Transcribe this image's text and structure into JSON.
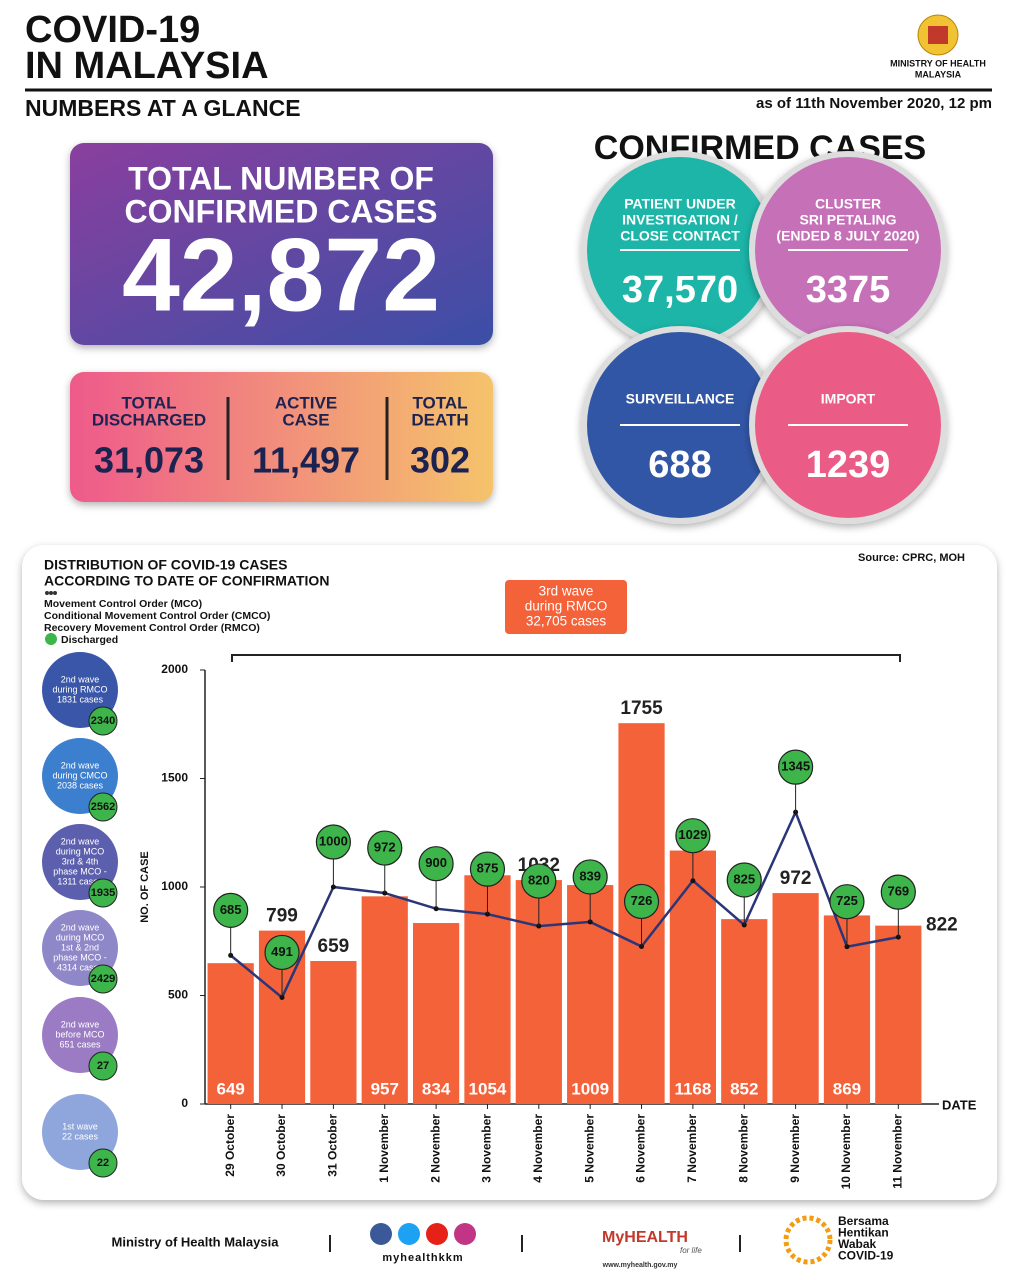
{
  "header": {
    "title_lines": [
      "COVID-19",
      "IN MALAYSIA"
    ],
    "subtitle": "NUMBERS AT A GLANCE",
    "ministry_lines": [
      "MINISTRY OF HEALTH",
      "MALAYSIA"
    ],
    "as_of": "as of 11th November 2020, 12 pm"
  },
  "total": {
    "label_lines": [
      "TOTAL NUMBER OF",
      "CONFIRMED CASES"
    ],
    "value": "42,872"
  },
  "summary": [
    {
      "label_lines": [
        "TOTAL",
        "DISCHARGED"
      ],
      "value": "31,073"
    },
    {
      "label_lines": [
        "ACTIVE",
        "CASE"
      ],
      "value": "11,497"
    },
    {
      "label_lines": [
        "TOTAL",
        "DEATH"
      ],
      "value": "302"
    }
  ],
  "confirmed": {
    "title": "CONFIRMED CASES",
    "groups": [
      {
        "label_lines": [
          "PATIENT UNDER",
          "INVESTIGATION /",
          "CLOSE CONTACT"
        ],
        "value": "37,570"
      },
      {
        "label_lines": [
          "CLUSTER",
          "SRI PETALING",
          "(ENDED 8 JULY 2020)"
        ],
        "value": "3375"
      },
      {
        "label_lines": [
          "SURVEILLANCE"
        ],
        "value": "688"
      },
      {
        "label_lines": [
          "IMPORT"
        ],
        "value": "1239"
      }
    ]
  },
  "chart_data": {
    "type": "bar",
    "title_lines": [
      "DISTRIBUTION OF COVID-19 CASES",
      "ACCORDING TO DATE OF CONFIRMATION"
    ],
    "source": "Source: CPRC, MOH",
    "legend_lines": [
      "Movement Control Order (MCO)",
      "Conditional Movement Control Order (CMCO)",
      "Recovery Movement Control Order (RMCO)"
    ],
    "annotation_lines": [
      "3rd wave",
      "during RMCO",
      "32,705 cases"
    ],
    "categories": [
      "29 October",
      "30 October",
      "31 October",
      "1 November",
      "2 November",
      "3 November",
      "4 November",
      "5 November",
      "6 November",
      "7 November",
      "8 November",
      "9 November",
      "10 November",
      "11 November"
    ],
    "series": [
      {
        "color": "#f4623a",
        "values": [
          649,
          799,
          659,
          957,
          834,
          1054,
          1032,
          1009,
          1755,
          1168,
          852,
          972,
          869,
          822
        ]
      },
      {
        "name": "Discharged",
        "type": "line",
        "color": "#2b3678",
        "marker_color": "#3db54a",
        "values": [
          685,
          491,
          1000,
          972,
          900,
          875,
          820,
          839,
          726,
          1029,
          825,
          1345,
          725,
          769
        ]
      }
    ],
    "ylim": [
      0,
      2000
    ],
    "yticks": [
      0,
      500,
      1000,
      1500,
      2000
    ],
    "ylabel": "NO. OF CASE",
    "xlabel": "DATE"
  },
  "waves": [
    {
      "label_lines": [
        "2nd wave",
        "during RMCO",
        "1831 cases"
      ],
      "discharged": "2340",
      "color": "#3a56a8"
    },
    {
      "label_lines": [
        "2nd wave",
        "during CMCO",
        "2038 cases"
      ],
      "discharged": "2562",
      "color": "#3d7fcf"
    },
    {
      "label_lines": [
        "2nd wave",
        "during MCO",
        "3rd & 4th",
        "phase MCO -",
        "1311 cases"
      ],
      "discharged": "1935",
      "color": "#5b5fae"
    },
    {
      "label_lines": [
        "2nd wave",
        "during MCO",
        "1st & 2nd",
        "phase MCO -",
        "4314 cases"
      ],
      "discharged": "2429",
      "color": "#8e88c9"
    },
    {
      "label_lines": [
        "2nd wave",
        "before MCO",
        "651 cases"
      ],
      "discharged": "27",
      "color": "#9b7cc4"
    },
    {
      "label_lines": [
        "1st wave",
        "22 cases"
      ],
      "discharged": "22",
      "color": "#8fa6dc"
    }
  ],
  "footer": {
    "ministry": "Ministry of Health Malaysia",
    "handle": "myhealthkkm",
    "brand": "MyHEALTH",
    "tagline": "for life",
    "url": "www.myhealth.gov.my",
    "campaign_lines": [
      "Bersama",
      "Hentikan",
      "Wabak",
      "COVID-19"
    ]
  }
}
